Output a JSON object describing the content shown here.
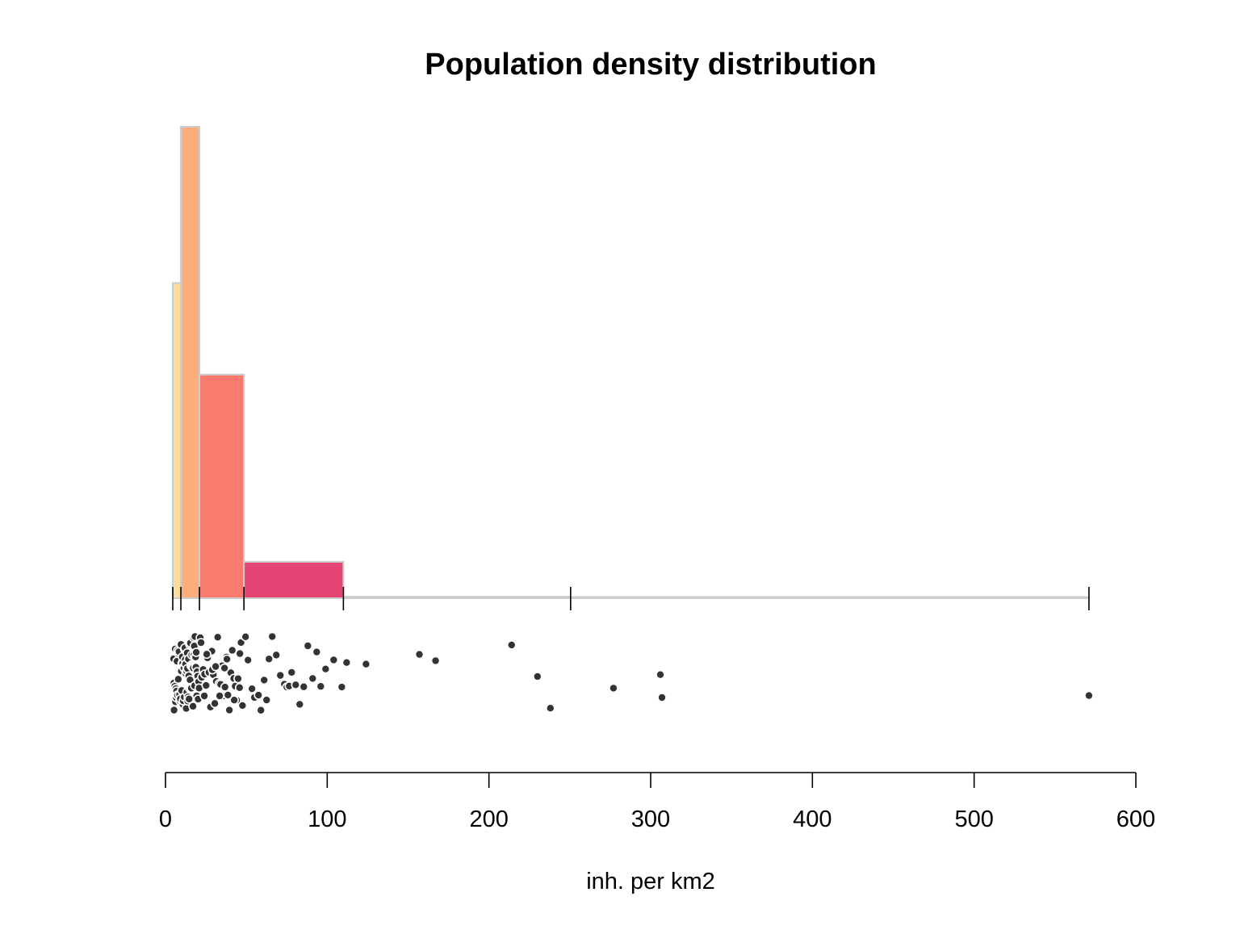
{
  "chart_data": {
    "type": "histogram",
    "title": "Population density distribution",
    "xlabel": "inh. per km2",
    "xlim": [
      0,
      600
    ],
    "x_ticks": [
      0,
      100,
      200,
      300,
      400,
      500,
      600
    ],
    "x_tick_labels": [
      "0",
      "100",
      "200",
      "300",
      "400",
      "500",
      "600"
    ],
    "class_breaks": [
      4.5,
      9.5,
      21,
      48.5,
      110,
      250.5,
      571
    ],
    "bins": [
      {
        "from": 4.5,
        "to": 9.5,
        "density": 0.0234,
        "color": "#FDDCA0"
      },
      {
        "from": 9.5,
        "to": 21,
        "density": 0.035,
        "color": "#FCAD7E"
      },
      {
        "from": 21,
        "to": 48.5,
        "density": 0.0166,
        "color": "#F87B6E"
      },
      {
        "from": 48.5,
        "to": 110,
        "density": 0.0027,
        "color": "#E44574"
      },
      {
        "from": 110,
        "to": 250.5,
        "density": 0.00011,
        "color": "#B3306D"
      },
      {
        "from": 250.5,
        "to": 571,
        "density": 2e-05,
        "color": "#7E2B74"
      }
    ],
    "histogram_ylim": [
      0,
      0.035
    ],
    "outline_color": "#CCCCCC",
    "point_color": "#333333",
    "points": [
      4.8,
      5.0,
      5.1,
      5.3,
      5.5,
      5.8,
      6.0,
      6.2,
      6.4,
      6.7,
      6.9,
      7.1,
      7.4,
      7.6,
      7.9,
      8.1,
      8.4,
      8.7,
      8.9,
      9.2,
      9.6,
      9.8,
      10.0,
      10.2,
      10.4,
      10.6,
      10.8,
      11.0,
      11.2,
      11.4,
      11.6,
      11.8,
      12.0,
      12.2,
      12.4,
      12.6,
      12.8,
      13.0,
      13.2,
      13.4,
      13.6,
      13.8,
      14.0,
      14.2,
      14.4,
      14.6,
      14.8,
      15.0,
      15.2,
      15.4,
      15.6,
      15.8,
      16.0,
      16.2,
      16.4,
      16.6,
      16.8,
      17.0,
      17.2,
      17.4,
      17.6,
      17.8,
      18.0,
      18.2,
      18.4,
      18.6,
      18.8,
      19.0,
      19.3,
      19.6,
      19.9,
      20.2,
      20.5,
      20.8,
      21.5,
      22.4,
      23.3,
      24.2,
      25.1,
      26.0,
      26.9,
      27.8,
      28.7,
      29.6,
      30.5,
      31.4,
      32.3,
      33.2,
      34.1,
      35.0,
      35.9,
      36.8,
      37.7,
      38.6,
      39.5,
      40.4,
      41.3,
      42.2,
      43.1,
      44.0,
      44.9,
      45.8,
      46.7,
      47.6,
      22.0,
      25.5,
      29.0,
      33.5,
      38.0,
      42.5,
      46.0,
      24.0,
      31.0,
      36.5,
      49.5,
      51.0,
      53.5,
      55.0,
      57.5,
      59.0,
      61.0,
      62.5,
      64.0,
      66.0,
      68.5,
      71.0,
      73.5,
      75.0,
      76.5,
      78.0,
      80.5,
      83.0,
      85.5,
      88.0,
      91.0,
      93.5,
      96.0,
      99.0,
      104.0,
      109.0,
      112.0,
      124.0,
      157.0,
      167.0,
      214.0,
      230.0,
      238.0,
      277.0,
      306.0,
      307.0,
      571.0
    ]
  }
}
